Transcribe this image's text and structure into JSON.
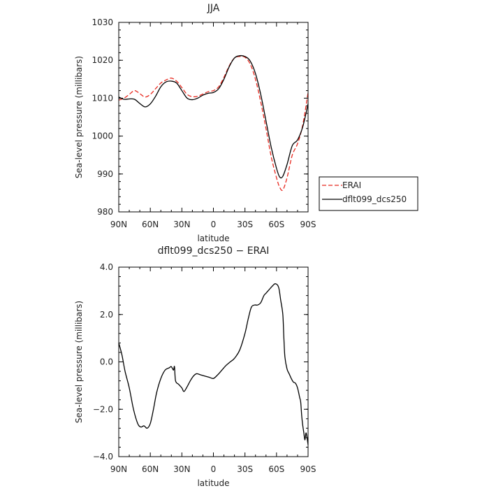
{
  "chart_data": [
    {
      "type": "line",
      "title": "JJA",
      "xlabel": "latitude",
      "ylabel": "Sea-level pressure (millibars)",
      "xticks": [
        "90N",
        "60N",
        "30N",
        "0",
        "30S",
        "60S",
        "90S"
      ],
      "xtick_values": [
        -90,
        -60,
        -30,
        0,
        30,
        60,
        90
      ],
      "yticks": [
        "980",
        "990",
        "1000",
        "1010",
        "1020",
        "1030"
      ],
      "xlim": [
        -90,
        90
      ],
      "ylim": [
        980,
        1030
      ],
      "legend": "right",
      "series": [
        {
          "name": "ERAI",
          "color": "#e8281e",
          "dash": "dashed",
          "x": [
            -90,
            -85,
            -80,
            -75,
            -70,
            -65,
            -60,
            -55,
            -50,
            -45,
            -40,
            -35,
            -30,
            -25,
            -20,
            -15,
            -10,
            -5,
            0,
            5,
            10,
            15,
            20,
            25,
            30,
            35,
            40,
            45,
            50,
            55,
            60,
            63,
            66,
            70,
            75,
            80,
            85,
            90
          ],
          "y": [
            1009.5,
            1010.0,
            1011.0,
            1012.0,
            1011.2,
            1010.3,
            1011.0,
            1012.5,
            1014.0,
            1014.8,
            1015.3,
            1014.5,
            1012.8,
            1011.0,
            1010.4,
            1010.5,
            1011.1,
            1011.7,
            1012.0,
            1013.0,
            1015.5,
            1018.5,
            1020.6,
            1021.0,
            1020.8,
            1019.0,
            1015.0,
            1009.0,
            1002.0,
            994.5,
            989.0,
            986.5,
            985.8,
            989.0,
            995.0,
            998.0,
            1003.0,
            1011.5
          ]
        },
        {
          "name": "dflt099_dcs250",
          "color": "#000000",
          "dash": "solid",
          "x": [
            -90,
            -85,
            -80,
            -75,
            -70,
            -65,
            -60,
            -55,
            -50,
            -45,
            -40,
            -35,
            -30,
            -25,
            -20,
            -15,
            -10,
            -5,
            0,
            5,
            10,
            15,
            20,
            25,
            30,
            35,
            40,
            45,
            50,
            55,
            60,
            63,
            66,
            70,
            75,
            80,
            85,
            90
          ],
          "y": [
            1010.3,
            1009.7,
            1009.8,
            1009.7,
            1008.6,
            1007.7,
            1008.5,
            1010.5,
            1013.0,
            1014.3,
            1014.5,
            1014.0,
            1012.0,
            1010.0,
            1009.6,
            1010.0,
            1010.8,
            1011.3,
            1011.5,
            1012.5,
            1015.0,
            1018.3,
            1020.6,
            1021.2,
            1021.0,
            1019.8,
            1016.5,
            1011.0,
            1004.0,
            997.0,
            991.5,
            989.2,
            989.4,
            992.5,
            997.5,
            999.0,
            1002.5,
            1008.5
          ]
        }
      ]
    },
    {
      "type": "line",
      "title": "dflt099_dcs250 − ERAI",
      "xlabel": "latitude",
      "ylabel": "Sea-level pressure (millibars)",
      "xticks": [
        "90N",
        "60N",
        "30N",
        "0",
        "30S",
        "60S",
        "90S"
      ],
      "xtick_values": [
        -90,
        -60,
        -30,
        0,
        30,
        60,
        90
      ],
      "yticks": [
        "−4.0",
        "−2.0",
        "0.0",
        "2.0",
        "4.0"
      ],
      "ytick_values": [
        -4,
        -2,
        0,
        2,
        4
      ],
      "xlim": [
        -90,
        90
      ],
      "ylim": [
        -4,
        4
      ],
      "series": [
        {
          "color": "#000000",
          "dash": "solid",
          "x": [
            -90,
            -87,
            -84,
            -80,
            -76,
            -72,
            -69,
            -66,
            -63,
            -60,
            -57,
            -54,
            -50,
            -46,
            -42,
            -40,
            -38,
            -37,
            -36,
            -33,
            -30,
            -28,
            -25,
            -22,
            -19,
            -16,
            -12,
            -8,
            -4,
            0,
            4,
            8,
            12,
            16,
            20,
            25,
            30,
            33,
            36,
            39,
            42,
            45,
            48,
            50,
            53,
            56,
            59,
            62,
            64,
            66,
            67,
            68,
            70,
            72,
            74,
            76,
            78,
            80,
            82,
            83,
            84,
            85,
            86,
            87,
            88,
            89,
            90
          ],
          "y": [
            0.8,
            0.3,
            -0.4,
            -1.1,
            -2.0,
            -2.6,
            -2.75,
            -2.7,
            -2.8,
            -2.6,
            -2.0,
            -1.3,
            -0.7,
            -0.35,
            -0.25,
            -0.2,
            -0.35,
            -0.2,
            -0.8,
            -0.95,
            -1.1,
            -1.25,
            -1.05,
            -0.8,
            -0.6,
            -0.5,
            -0.55,
            -0.6,
            -0.65,
            -0.7,
            -0.55,
            -0.35,
            -0.15,
            0.0,
            0.15,
            0.5,
            1.2,
            1.8,
            2.3,
            2.4,
            2.4,
            2.5,
            2.8,
            2.9,
            3.05,
            3.2,
            3.3,
            3.15,
            2.6,
            2.0,
            1.0,
            0.2,
            -0.3,
            -0.5,
            -0.7,
            -0.85,
            -0.9,
            -1.1,
            -1.5,
            -1.7,
            -2.3,
            -2.7,
            -3.0,
            -3.3,
            -3.0,
            -3.2,
            -3.5
          ]
        }
      ]
    }
  ]
}
